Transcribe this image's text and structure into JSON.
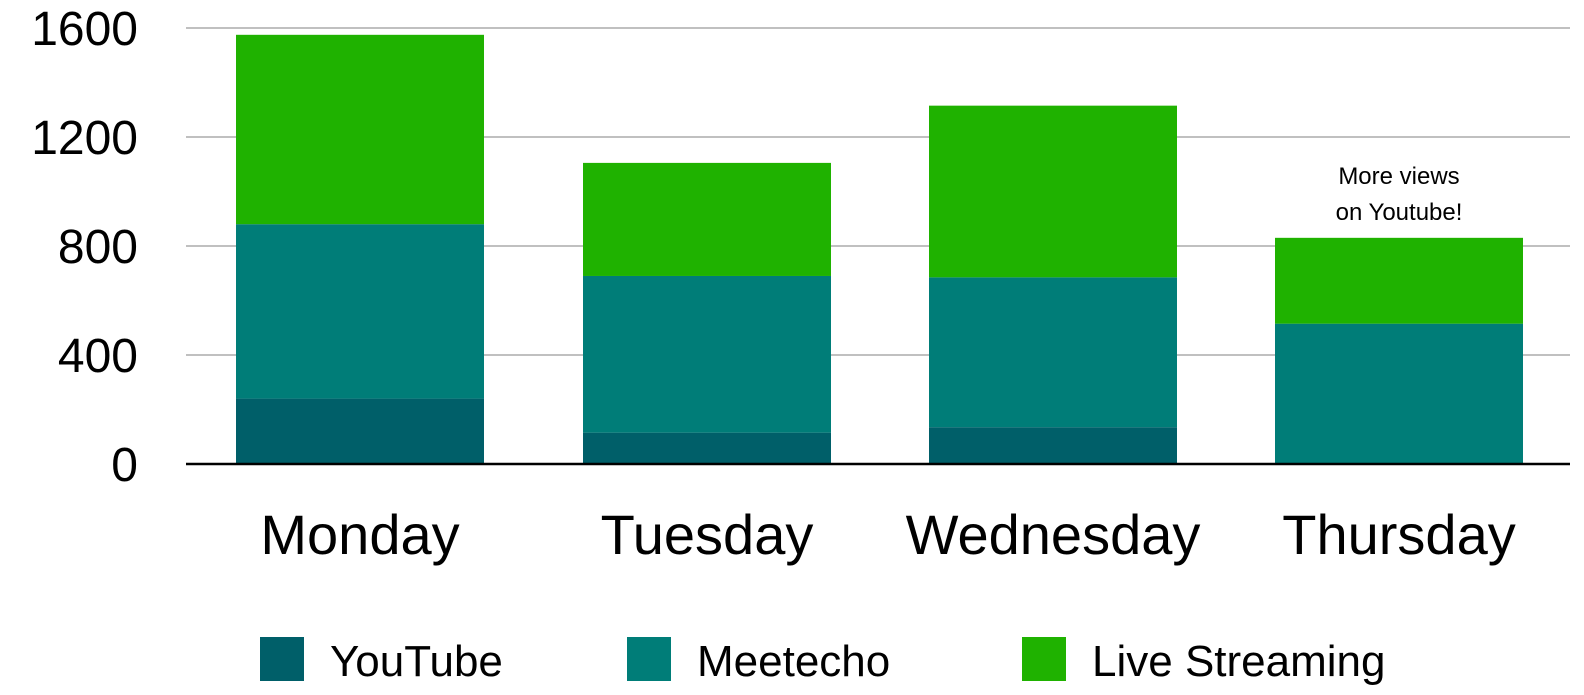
{
  "chart_data": {
    "type": "bar",
    "stacked": true,
    "categories": [
      "Monday",
      "Tuesday",
      "Wednesday",
      "Thursday"
    ],
    "series": [
      {
        "name": "YouTube",
        "color": "#005f69",
        "values": [
          240,
          115,
          135,
          0
        ]
      },
      {
        "name": "Meetecho",
        "color": "#007d78",
        "values": [
          640,
          575,
          550,
          515
        ]
      },
      {
        "name": "Live Streaming",
        "color": "#1fb200",
        "values": [
          695,
          415,
          630,
          315
        ]
      }
    ],
    "ylim": [
      0,
      1600
    ],
    "yticks": [
      0,
      400,
      800,
      1200,
      1600
    ],
    "ytick_labels": [
      "0",
      "400",
      "800",
      "1200",
      "1600"
    ],
    "grid": true,
    "legend_position": "bottom",
    "annotations": [
      {
        "category": "Thursday",
        "lines": [
          "More views",
          "on Youtube!"
        ]
      }
    ]
  }
}
